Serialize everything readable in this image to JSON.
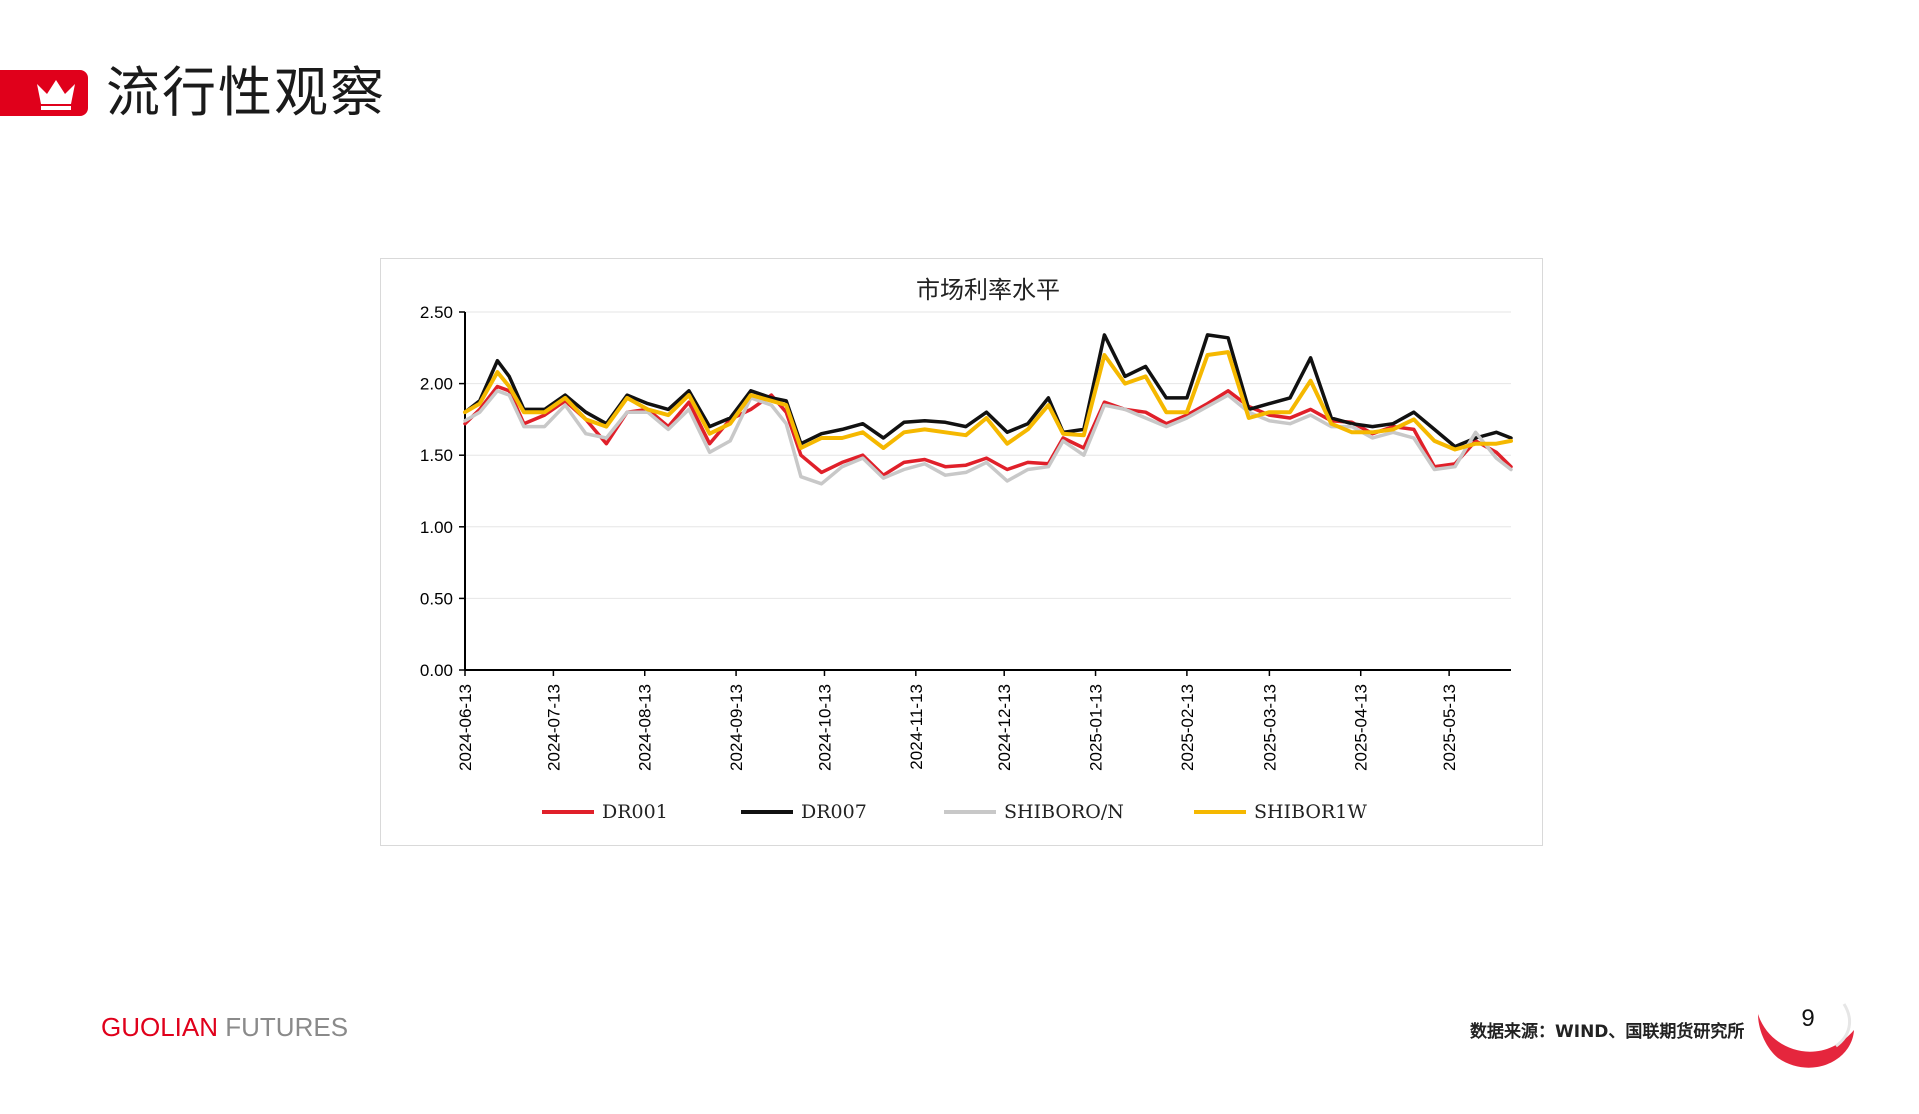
{
  "header": {
    "title": "流行性观察",
    "accent_color": "#e0001b",
    "icon": "crown-icon"
  },
  "footer": {
    "brand_part1": "GUOLIAN",
    "brand_part2": "FUTURES",
    "source": "数据来源：WIND、国联期货研究所",
    "page_number": "9"
  },
  "chart_data": {
    "type": "line",
    "title": "市场利率水平",
    "xlabel": "",
    "ylabel": "",
    "ylim": [
      0,
      2.5
    ],
    "yticks": [
      "0.00",
      "0.50",
      "1.00",
      "1.50",
      "2.00",
      "2.50"
    ],
    "xticks": [
      "2024-06-13",
      "2024-07-13",
      "2024-08-13",
      "2024-09-13",
      "2024-10-13",
      "2024-11-13",
      "2024-12-13",
      "2025-01-13",
      "2025-02-13",
      "2025-03-13",
      "2025-04-13",
      "2025-05-13"
    ],
    "xlim": [
      "2024-06-13",
      "2025-06-03"
    ],
    "grid": true,
    "legend_position": "bottom",
    "series": [
      {
        "name": "DR001",
        "color": "#e0202a",
        "x": [
          "2024-06-13",
          "2024-06-18",
          "2024-06-24",
          "2024-06-28",
          "2024-07-03",
          "2024-07-10",
          "2024-07-17",
          "2024-07-24",
          "2024-07-31",
          "2024-08-07",
          "2024-08-14",
          "2024-08-21",
          "2024-08-28",
          "2024-09-04",
          "2024-09-11",
          "2024-09-18",
          "2024-09-25",
          "2024-09-30",
          "2024-10-05",
          "2024-10-12",
          "2024-10-19",
          "2024-10-26",
          "2024-11-02",
          "2024-11-09",
          "2024-11-16",
          "2024-11-23",
          "2024-11-30",
          "2024-12-07",
          "2024-12-14",
          "2024-12-21",
          "2024-12-28",
          "2025-01-02",
          "2025-01-09",
          "2025-01-16",
          "2025-01-23",
          "2025-01-30",
          "2025-02-06",
          "2025-02-13",
          "2025-02-20",
          "2025-02-27",
          "2025-03-06",
          "2025-03-13",
          "2025-03-20",
          "2025-03-27",
          "2025-04-03",
          "2025-04-10",
          "2025-04-17",
          "2025-04-24",
          "2025-05-01",
          "2025-05-08",
          "2025-05-15",
          "2025-05-22",
          "2025-05-29",
          "2025-06-03"
        ],
        "y": [
          1.72,
          1.82,
          1.98,
          1.95,
          1.72,
          1.78,
          1.88,
          1.75,
          1.58,
          1.8,
          1.82,
          1.7,
          1.87,
          1.58,
          1.75,
          1.82,
          1.92,
          1.8,
          1.5,
          1.38,
          1.45,
          1.5,
          1.36,
          1.45,
          1.47,
          1.42,
          1.43,
          1.48,
          1.4,
          1.45,
          1.44,
          1.62,
          1.55,
          1.87,
          1.82,
          1.8,
          1.72,
          1.78,
          1.86,
          1.95,
          1.84,
          1.78,
          1.76,
          1.82,
          1.74,
          1.73,
          1.65,
          1.7,
          1.68,
          1.42,
          1.44,
          1.6,
          1.52,
          1.42
        ]
      },
      {
        "name": "DR007",
        "color": "#111111",
        "x": [
          "2024-06-13",
          "2024-06-18",
          "2024-06-24",
          "2024-06-28",
          "2024-07-03",
          "2024-07-10",
          "2024-07-17",
          "2024-07-24",
          "2024-07-31",
          "2024-08-07",
          "2024-08-14",
          "2024-08-21",
          "2024-08-28",
          "2024-09-04",
          "2024-09-11",
          "2024-09-18",
          "2024-09-25",
          "2024-09-30",
          "2024-10-05",
          "2024-10-12",
          "2024-10-19",
          "2024-10-26",
          "2024-11-02",
          "2024-11-09",
          "2024-11-16",
          "2024-11-23",
          "2024-11-30",
          "2024-12-07",
          "2024-12-14",
          "2024-12-21",
          "2024-12-28",
          "2025-01-02",
          "2025-01-09",
          "2025-01-16",
          "2025-01-23",
          "2025-01-30",
          "2025-02-06",
          "2025-02-13",
          "2025-02-20",
          "2025-02-27",
          "2025-03-06",
          "2025-03-13",
          "2025-03-20",
          "2025-03-27",
          "2025-04-03",
          "2025-04-10",
          "2025-04-17",
          "2025-04-24",
          "2025-05-01",
          "2025-05-08",
          "2025-05-15",
          "2025-05-22",
          "2025-05-29",
          "2025-06-03"
        ],
        "y": [
          1.8,
          1.88,
          2.16,
          2.05,
          1.82,
          1.82,
          1.92,
          1.8,
          1.72,
          1.92,
          1.86,
          1.82,
          1.95,
          1.7,
          1.76,
          1.95,
          1.9,
          1.88,
          1.58,
          1.65,
          1.68,
          1.72,
          1.62,
          1.73,
          1.74,
          1.73,
          1.7,
          1.8,
          1.66,
          1.72,
          1.9,
          1.66,
          1.68,
          2.34,
          2.05,
          2.12,
          1.9,
          1.9,
          2.34,
          2.32,
          1.82,
          1.86,
          1.9,
          2.18,
          1.76,
          1.72,
          1.7,
          1.72,
          1.8,
          1.68,
          1.56,
          1.62,
          1.66,
          1.62
        ]
      },
      {
        "name": "SHIBORO/N",
        "color": "#c8c8c8",
        "x": [
          "2024-06-13",
          "2024-06-18",
          "2024-06-24",
          "2024-06-28",
          "2024-07-03",
          "2024-07-10",
          "2024-07-17",
          "2024-07-24",
          "2024-07-31",
          "2024-08-07",
          "2024-08-14",
          "2024-08-21",
          "2024-08-28",
          "2024-09-04",
          "2024-09-11",
          "2024-09-18",
          "2024-09-25",
          "2024-09-30",
          "2024-10-05",
          "2024-10-12",
          "2024-10-19",
          "2024-10-26",
          "2024-11-02",
          "2024-11-09",
          "2024-11-16",
          "2024-11-23",
          "2024-11-30",
          "2024-12-07",
          "2024-12-14",
          "2024-12-21",
          "2024-12-28",
          "2025-01-02",
          "2025-01-09",
          "2025-01-16",
          "2025-01-23",
          "2025-01-30",
          "2025-02-06",
          "2025-02-13",
          "2025-02-20",
          "2025-02-27",
          "2025-03-06",
          "2025-03-13",
          "2025-03-20",
          "2025-03-27",
          "2025-04-03",
          "2025-04-10",
          "2025-04-17",
          "2025-04-24",
          "2025-05-01",
          "2025-05-08",
          "2025-05-15",
          "2025-05-22",
          "2025-05-29",
          "2025-06-03"
        ],
        "y": [
          1.74,
          1.8,
          1.95,
          1.92,
          1.7,
          1.7,
          1.85,
          1.65,
          1.62,
          1.8,
          1.8,
          1.68,
          1.82,
          1.52,
          1.6,
          1.9,
          1.85,
          1.72,
          1.35,
          1.3,
          1.42,
          1.48,
          1.34,
          1.4,
          1.44,
          1.36,
          1.38,
          1.45,
          1.32,
          1.4,
          1.42,
          1.6,
          1.5,
          1.85,
          1.82,
          1.76,
          1.7,
          1.76,
          1.84,
          1.92,
          1.8,
          1.74,
          1.72,
          1.78,
          1.7,
          1.7,
          1.62,
          1.66,
          1.62,
          1.4,
          1.42,
          1.66,
          1.48,
          1.4
        ]
      },
      {
        "name": "SHIBOR1W",
        "color": "#f5b800",
        "x": [
          "2024-06-13",
          "2024-06-18",
          "2024-06-24",
          "2024-06-28",
          "2024-07-03",
          "2024-07-10",
          "2024-07-17",
          "2024-07-24",
          "2024-07-31",
          "2024-08-07",
          "2024-08-14",
          "2024-08-21",
          "2024-08-28",
          "2024-09-04",
          "2024-09-11",
          "2024-09-18",
          "2024-09-25",
          "2024-09-30",
          "2024-10-05",
          "2024-10-12",
          "2024-10-19",
          "2024-10-26",
          "2024-11-02",
          "2024-11-09",
          "2024-11-16",
          "2024-11-23",
          "2024-11-30",
          "2024-12-07",
          "2024-12-14",
          "2024-12-21",
          "2024-12-28",
          "2025-01-02",
          "2025-01-09",
          "2025-01-16",
          "2025-01-23",
          "2025-01-30",
          "2025-02-06",
          "2025-02-13",
          "2025-02-20",
          "2025-02-27",
          "2025-03-06",
          "2025-03-13",
          "2025-03-20",
          "2025-03-27",
          "2025-04-03",
          "2025-04-10",
          "2025-04-17",
          "2025-04-24",
          "2025-05-01",
          "2025-05-08",
          "2025-05-15",
          "2025-05-22",
          "2025-05-29",
          "2025-06-03"
        ],
        "y": [
          1.8,
          1.86,
          2.08,
          1.98,
          1.8,
          1.8,
          1.9,
          1.75,
          1.7,
          1.9,
          1.82,
          1.78,
          1.92,
          1.65,
          1.72,
          1.92,
          1.88,
          1.85,
          1.55,
          1.62,
          1.62,
          1.66,
          1.55,
          1.66,
          1.68,
          1.66,
          1.64,
          1.76,
          1.58,
          1.68,
          1.85,
          1.65,
          1.64,
          2.2,
          2.0,
          2.05,
          1.8,
          1.8,
          2.2,
          2.22,
          1.76,
          1.8,
          1.8,
          2.02,
          1.72,
          1.66,
          1.66,
          1.68,
          1.75,
          1.6,
          1.54,
          1.58,
          1.58,
          1.6
        ]
      }
    ]
  }
}
